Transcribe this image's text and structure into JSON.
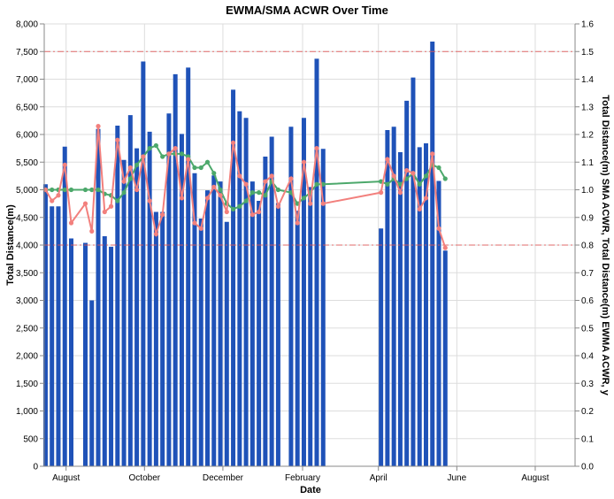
{
  "chart_data": {
    "type": "bar+line",
    "title": "EWMA/SMA ACWR Over Time",
    "xlabel": "Date",
    "ylabel_left": "Total Distance(m)",
    "ylabel_right": "Total Distance(m) SMA ACWR, Total Distance(m) EWMA ACWR, y",
    "ylim_left": [
      0,
      8000
    ],
    "ylim_right": [
      0,
      1.6
    ],
    "x_range": [
      "2021-07-15",
      "2022-09-01"
    ],
    "yticks_left": [
      "0",
      "500",
      "1,000",
      "1,500",
      "2,000",
      "2,500",
      "3,000",
      "3,500",
      "4,000",
      "4,500",
      "5,000",
      "5,500",
      "6,000",
      "6,500",
      "7,000",
      "7,500",
      "8,000"
    ],
    "yticks_right": [
      "0.0",
      "0.1",
      "0.2",
      "0.3",
      "0.4",
      "0.5",
      "0.6",
      "0.7",
      "0.8",
      "0.9",
      "1.0",
      "1.1",
      "1.2",
      "1.3",
      "1.4",
      "1.5",
      "1.6"
    ],
    "xticks": [
      {
        "date": "2021-08-01",
        "label": "August"
      },
      {
        "date": "2021-10-01",
        "label": "October"
      },
      {
        "date": "2021-12-01",
        "label": "December"
      },
      {
        "date": "2022-02-01",
        "label": "February"
      },
      {
        "date": "2022-04-01",
        "label": "April"
      },
      {
        "date": "2022-06-01",
        "label": "June"
      },
      {
        "date": "2022-08-01",
        "label": "August"
      }
    ],
    "reference_lines": [
      {
        "y": 1.5,
        "color": "#e45756"
      },
      {
        "y": 0.8,
        "color": "#e45756"
      }
    ],
    "bars": {
      "name": "Total Distance(m)",
      "color": "#1f52b8",
      "points": [
        [
          "2021-07-16",
          5100
        ],
        [
          "2021-07-21",
          4700
        ],
        [
          "2021-07-26",
          4700
        ],
        [
          "2021-07-31",
          5780
        ],
        [
          "2021-08-05",
          4120
        ],
        [
          "2021-08-16",
          4040
        ],
        [
          "2021-08-21",
          3000
        ],
        [
          "2021-08-26",
          6100
        ],
        [
          "2021-08-31",
          4160
        ],
        [
          "2021-09-05",
          3970
        ],
        [
          "2021-09-10",
          6160
        ],
        [
          "2021-09-15",
          5540
        ],
        [
          "2021-09-20",
          6350
        ],
        [
          "2021-09-25",
          5750
        ],
        [
          "2021-09-30",
          7320
        ],
        [
          "2021-10-05",
          6050
        ],
        [
          "2021-10-10",
          4600
        ],
        [
          "2021-10-15",
          4600
        ],
        [
          "2021-10-20",
          6380
        ],
        [
          "2021-10-25",
          7090
        ],
        [
          "2021-10-30",
          6010
        ],
        [
          "2021-11-04",
          7210
        ],
        [
          "2021-11-09",
          5300
        ],
        [
          "2021-11-14",
          4480
        ],
        [
          "2021-11-19",
          4990
        ],
        [
          "2021-11-24",
          5260
        ],
        [
          "2021-11-29",
          5150
        ],
        [
          "2021-12-04",
          4420
        ],
        [
          "2021-12-09",
          6810
        ],
        [
          "2021-12-14",
          6420
        ],
        [
          "2021-12-19",
          6300
        ],
        [
          "2021-12-24",
          5150
        ],
        [
          "2021-12-29",
          4800
        ],
        [
          "2022-01-03",
          5600
        ],
        [
          "2022-01-08",
          5960
        ],
        [
          "2022-01-13",
          4760
        ],
        [
          "2022-01-23",
          6140
        ],
        [
          "2022-01-28",
          4620
        ],
        [
          "2022-02-02",
          6300
        ],
        [
          "2022-02-07",
          5050
        ],
        [
          "2022-02-12",
          7370
        ],
        [
          "2022-02-17",
          5740
        ],
        [
          "2022-04-03",
          4300
        ],
        [
          "2022-04-08",
          6080
        ],
        [
          "2022-04-13",
          6140
        ],
        [
          "2022-04-18",
          5680
        ],
        [
          "2022-04-23",
          6610
        ],
        [
          "2022-04-28",
          7030
        ],
        [
          "2022-05-03",
          5770
        ],
        [
          "2022-05-08",
          5840
        ],
        [
          "2022-05-13",
          7680
        ],
        [
          "2022-05-18",
          5160
        ],
        [
          "2022-05-23",
          3900
        ]
      ]
    },
    "series": [
      {
        "name": "Total Distance(m) SMA ACWR",
        "color": "#4ca86b",
        "points": [
          [
            "2021-07-16",
            1.0
          ],
          [
            "2021-07-21",
            1.0
          ],
          [
            "2021-07-26",
            1.0
          ],
          [
            "2021-07-31",
            1.0
          ],
          [
            "2021-08-05",
            1.0
          ],
          [
            "2021-08-16",
            1.0
          ],
          [
            "2021-08-21",
            1.0
          ],
          [
            "2021-08-26",
            1.0
          ],
          [
            "2021-08-31",
            0.985
          ],
          [
            "2021-09-05",
            0.98
          ],
          [
            "2021-09-10",
            0.96
          ],
          [
            "2021-09-15",
            0.99
          ],
          [
            "2021-09-20",
            1.04
          ],
          [
            "2021-09-25",
            1.09
          ],
          [
            "2021-09-30",
            1.12
          ],
          [
            "2021-10-05",
            1.15
          ],
          [
            "2021-10-10",
            1.16
          ],
          [
            "2021-10-15",
            1.12
          ],
          [
            "2021-10-20",
            1.13
          ],
          [
            "2021-10-25",
            1.13
          ],
          [
            "2021-10-30",
            1.13
          ],
          [
            "2021-11-04",
            1.12
          ],
          [
            "2021-11-09",
            1.08
          ],
          [
            "2021-11-14",
            1.08
          ],
          [
            "2021-11-19",
            1.1
          ],
          [
            "2021-11-24",
            1.06
          ],
          [
            "2021-11-29",
            1.0
          ],
          [
            "2021-12-04",
            0.95
          ],
          [
            "2021-12-09",
            0.93
          ],
          [
            "2021-12-14",
            0.94
          ],
          [
            "2021-12-19",
            0.96
          ],
          [
            "2021-12-24",
            0.99
          ],
          [
            "2021-12-29",
            0.99
          ],
          [
            "2022-01-03",
            0.98
          ],
          [
            "2022-01-08",
            1.03
          ],
          [
            "2022-01-13",
            1.0
          ],
          [
            "2022-01-23",
            0.99
          ],
          [
            "2022-01-28",
            0.95
          ],
          [
            "2022-02-02",
            0.97
          ],
          [
            "2022-02-07",
            0.99
          ],
          [
            "2022-02-12",
            1.02
          ],
          [
            "2022-02-17",
            1.02
          ],
          [
            "2022-04-03",
            1.03
          ],
          [
            "2022-04-08",
            1.02
          ],
          [
            "2022-04-13",
            1.04
          ],
          [
            "2022-04-18",
            1.02
          ],
          [
            "2022-04-23",
            1.04
          ],
          [
            "2022-04-28",
            1.06
          ],
          [
            "2022-05-03",
            1.02
          ],
          [
            "2022-05-08",
            1.05
          ],
          [
            "2022-05-13",
            1.09
          ],
          [
            "2022-05-18",
            1.08
          ],
          [
            "2022-05-23",
            1.04
          ]
        ]
      },
      {
        "name": "Total Distance(m) EWMA ACWR",
        "color": "#f2807d",
        "points": [
          [
            "2021-07-16",
            1.0
          ],
          [
            "2021-07-21",
            0.96
          ],
          [
            "2021-07-26",
            0.98
          ],
          [
            "2021-07-31",
            1.09
          ],
          [
            "2021-08-05",
            0.88
          ],
          [
            "2021-08-16",
            0.95
          ],
          [
            "2021-08-21",
            0.85
          ],
          [
            "2021-08-26",
            1.23
          ],
          [
            "2021-08-31",
            0.92
          ],
          [
            "2021-09-05",
            0.94
          ],
          [
            "2021-09-10",
            1.18
          ],
          [
            "2021-09-15",
            1.03
          ],
          [
            "2021-09-20",
            1.08
          ],
          [
            "2021-09-25",
            1.0
          ],
          [
            "2021-09-30",
            1.12
          ],
          [
            "2021-10-05",
            0.96
          ],
          [
            "2021-10-10",
            0.84
          ],
          [
            "2021-10-15",
            0.91
          ],
          [
            "2021-10-20",
            1.13
          ],
          [
            "2021-10-25",
            1.15
          ],
          [
            "2021-10-30",
            0.97
          ],
          [
            "2021-11-04",
            1.11
          ],
          [
            "2021-11-09",
            0.88
          ],
          [
            "2021-11-14",
            0.86
          ],
          [
            "2021-11-19",
            0.97
          ],
          [
            "2021-11-24",
            1.01
          ],
          [
            "2021-11-29",
            0.98
          ],
          [
            "2021-12-04",
            0.92
          ],
          [
            "2021-12-09",
            1.17
          ],
          [
            "2021-12-14",
            1.05
          ],
          [
            "2021-12-19",
            1.02
          ],
          [
            "2021-12-24",
            0.91
          ],
          [
            "2021-12-29",
            0.92
          ],
          [
            "2022-01-03",
            1.03
          ],
          [
            "2022-01-08",
            1.05
          ],
          [
            "2022-01-13",
            0.94
          ],
          [
            "2022-01-23",
            1.04
          ],
          [
            "2022-01-28",
            0.88
          ],
          [
            "2022-02-02",
            1.1
          ],
          [
            "2022-02-07",
            0.95
          ],
          [
            "2022-02-12",
            1.15
          ],
          [
            "2022-02-17",
            0.95
          ],
          [
            "2022-04-03",
            0.99
          ],
          [
            "2022-04-08",
            1.11
          ],
          [
            "2022-04-13",
            1.05
          ],
          [
            "2022-04-18",
            0.99
          ],
          [
            "2022-04-23",
            1.07
          ],
          [
            "2022-04-28",
            1.06
          ],
          [
            "2022-05-03",
            0.93
          ],
          [
            "2022-05-08",
            0.97
          ],
          [
            "2022-05-13",
            1.13
          ],
          [
            "2022-05-18",
            0.86
          ],
          [
            "2022-05-23",
            0.79
          ]
        ]
      }
    ],
    "grid": true,
    "legend": "none"
  }
}
